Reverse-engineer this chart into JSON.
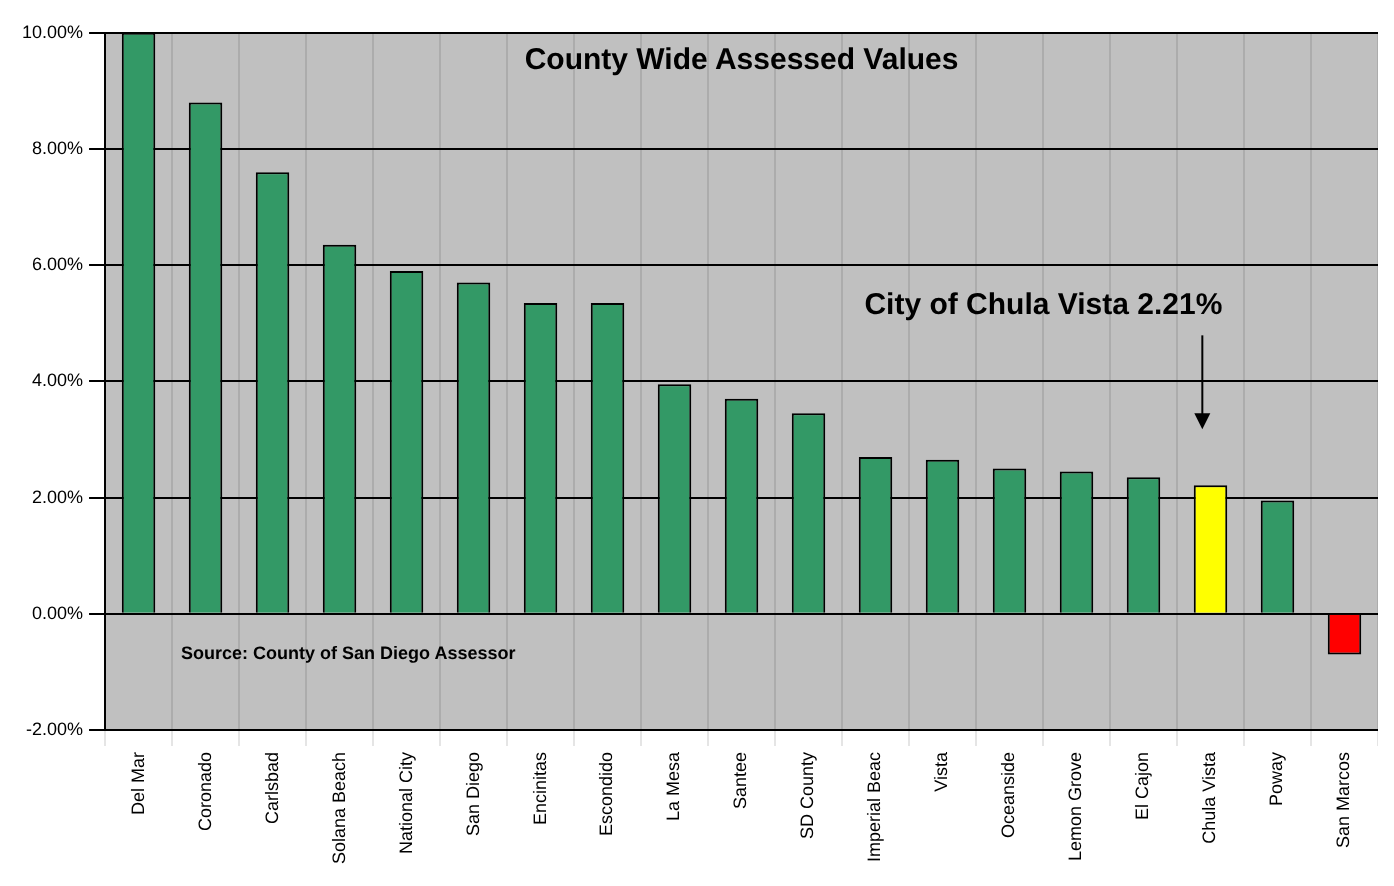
{
  "chart_data": {
    "type": "bar",
    "title": "County Wide Assessed Values",
    "categories": [
      "Del Mar",
      "Coronado",
      "Carlsbad",
      "Solana Beach",
      "National City",
      "San Diego",
      "Encinitas",
      "Escondido",
      "La Mesa",
      "Santee",
      "SD County",
      "Imperial Beac",
      "Vista",
      "Oceanside",
      "Lemon Grove",
      "El Cajon",
      "Chula Vista",
      "Poway",
      "San Marcos"
    ],
    "values": [
      10.0,
      8.8,
      7.6,
      6.35,
      5.9,
      5.7,
      5.35,
      5.35,
      3.95,
      3.7,
      3.45,
      2.7,
      2.65,
      2.5,
      2.45,
      2.35,
      2.21,
      1.95,
      -0.7
    ],
    "colors": [
      "#339966",
      "#339966",
      "#339966",
      "#339966",
      "#339966",
      "#339966",
      "#339966",
      "#339966",
      "#339966",
      "#339966",
      "#339966",
      "#339966",
      "#339966",
      "#339966",
      "#339966",
      "#339966",
      "#ffff00",
      "#339966",
      "#ff0000"
    ],
    "ylim": [
      -2,
      10
    ],
    "yticks": [
      {
        "value": -2,
        "label": "-2.00%"
      },
      {
        "value": 0,
        "label": "0.00%"
      },
      {
        "value": 2,
        "label": "2.00%"
      },
      {
        "value": 4,
        "label": "4.00%"
      },
      {
        "value": 6,
        "label": "6.00%"
      },
      {
        "value": 8,
        "label": "8.00%"
      },
      {
        "value": 10,
        "label": "10.00%"
      }
    ],
    "annotations": [
      "City of Chula Vista 2.21%",
      "Source: County of San Diego Assessor"
    ],
    "grid": true,
    "legend": false
  }
}
